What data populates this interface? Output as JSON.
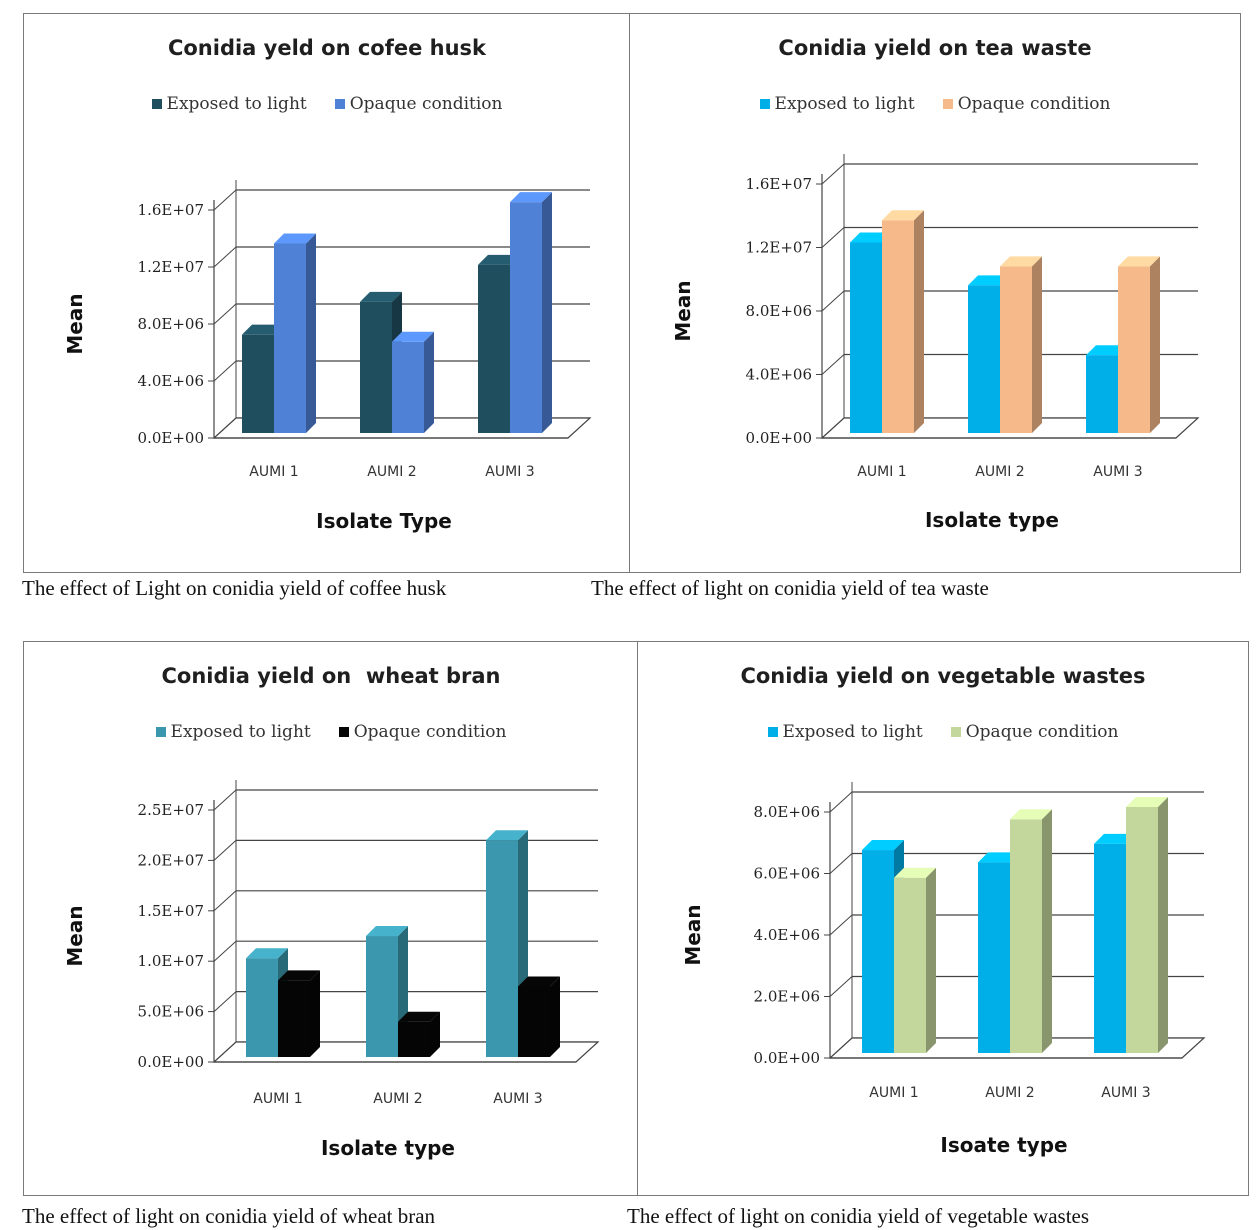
{
  "captions": [
    "The effect of Light on conidia yield of coffee husk",
    "The effect of light on conidia yield of tea waste",
    "The effect of light on conidia yield of wheat bran",
    "The effect of light on conidia yield of vegetable wastes"
  ],
  "chart_data": [
    {
      "type": "bar",
      "title": "Conidia yeld on cofee husk",
      "xlabel": "Isolate Type",
      "ylabel": "Mean",
      "categories": [
        "AUMI 1",
        "AUMI 2",
        "AUMI 3"
      ],
      "yticks": [
        "0.0E+00",
        "4.0E+06",
        "8.0E+06",
        "1.2E+07",
        "1.6E+07"
      ],
      "ylim": [
        0,
        16000000
      ],
      "legend_position": "top",
      "grid": true,
      "series": [
        {
          "name": "Exposed to light",
          "color": "#1f4e5f",
          "values": [
            6900000,
            9200000,
            11800000
          ]
        },
        {
          "name": "Opaque condition",
          "color": "#4f81d6",
          "values": [
            13300000,
            6400000,
            16200000
          ]
        }
      ]
    },
    {
      "type": "bar",
      "title": "Conidia yield on tea waste",
      "xlabel": "Isolate type",
      "ylabel": "Mean",
      "categories": [
        "AUMI 1",
        "AUMI 2",
        "AUMI 3"
      ],
      "yticks": [
        "0.0E+00",
        "4.0E+06",
        "8.0E+06",
        "1.2E+07",
        "1.6E+07"
      ],
      "ylim": [
        0,
        16000000
      ],
      "legend_position": "top",
      "grid": true,
      "series": [
        {
          "name": "Exposed to light",
          "color": "#00aee8",
          "values": [
            12000000,
            9300000,
            4900000
          ]
        },
        {
          "name": "Opaque condition",
          "color": "#f6b98a",
          "values": [
            13400000,
            10500000,
            10500000
          ]
        }
      ]
    },
    {
      "type": "bar",
      "title": "Conidia yield on  wheat bran",
      "xlabel": "Isolate type",
      "ylabel": "Mean",
      "categories": [
        "AUMI 1",
        "AUMI 2",
        "AUMI 3"
      ],
      "yticks": [
        "0.0E+00",
        "5.0E+06",
        "1.0E+07",
        "1.5E+07",
        "2.0E+07",
        "2.5E+07"
      ],
      "ylim": [
        0,
        25000000
      ],
      "legend_position": "top",
      "grid": true,
      "series": [
        {
          "name": "Exposed to light",
          "color": "#3b97ad",
          "values": [
            9800000,
            12000000,
            21500000
          ]
        },
        {
          "name": "Opaque condition",
          "color": "#050505",
          "values": [
            7600000,
            3500000,
            7000000
          ]
        }
      ]
    },
    {
      "type": "bar",
      "title": "Conidia yield on vegetable wastes",
      "xlabel": "Isoate type",
      "ylabel": "Mean",
      "categories": [
        "AUMI 1",
        "AUMI 2",
        "AUMI 3"
      ],
      "yticks": [
        "0.0E+00",
        "2.0E+06",
        "4.0E+06",
        "6.0E+06",
        "8.0E+06"
      ],
      "ylim": [
        0,
        8000000
      ],
      "legend_position": "top",
      "grid": true,
      "series": [
        {
          "name": "Exposed to light",
          "color": "#00aee8",
          "values": [
            6600000,
            6200000,
            6800000
          ]
        },
        {
          "name": "Opaque condition",
          "color": "#c3d69b",
          "values": [
            5700000,
            7600000,
            8000000
          ]
        }
      ]
    }
  ]
}
